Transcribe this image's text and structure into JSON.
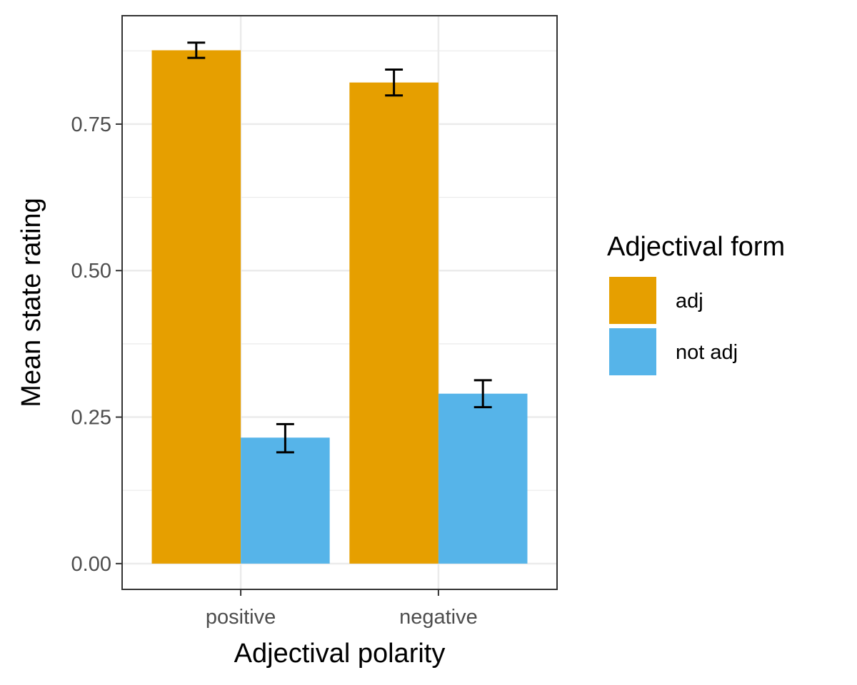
{
  "chart_data": {
    "type": "bar",
    "title": "",
    "xlabel": "Adjectival polarity",
    "ylabel": "Mean state rating",
    "categories": [
      "positive",
      "negative"
    ],
    "series": [
      {
        "name": "adj",
        "color": "#E69F00",
        "values": [
          0.876,
          0.821
        ],
        "error_low": [
          0.863,
          0.799
        ],
        "error_high": [
          0.889,
          0.843
        ]
      },
      {
        "name": "not adj",
        "color": "#56B4E9",
        "values": [
          0.215,
          0.29
        ],
        "error_low": [
          0.19,
          0.267
        ],
        "error_high": [
          0.238,
          0.313
        ]
      }
    ],
    "ylim": [
      -0.044,
      0.935
    ],
    "yticks": [
      0.0,
      0.25,
      0.5,
      0.75
    ],
    "ytick_labels": [
      "0.00",
      "0.25",
      "0.50",
      "0.75"
    ],
    "grid": true,
    "legend": {
      "title": "Adjectival form",
      "placement": "right"
    }
  }
}
